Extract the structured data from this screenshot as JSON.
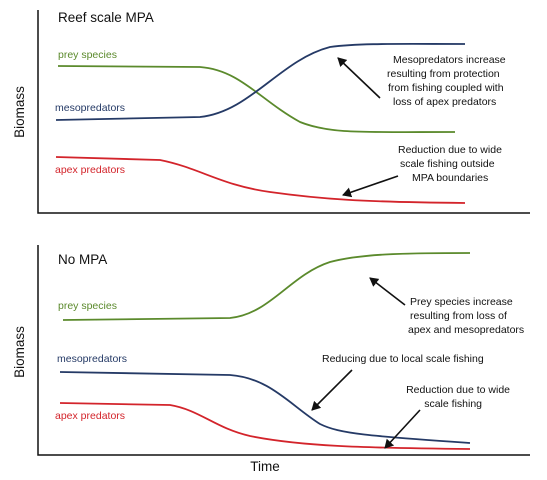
{
  "panels": [
    {
      "title": "Reef scale MPA",
      "y_label": "Biomass",
      "series_labels": [
        "prey species",
        "mesopredators",
        "apex predators"
      ],
      "annotations": [
        [
          "Mesopredators increase",
          "resulting from protection",
          "from fishing coupled with",
          "loss of apex predators"
        ],
        [
          "Reduction due to wide",
          "scale fishing outside",
          "MPA boundaries"
        ]
      ]
    },
    {
      "title": "No MPA",
      "y_label": "Biomass",
      "x_label": "Time",
      "series_labels": [
        "prey species",
        "mesopredators",
        "apex predators"
      ],
      "annotations": [
        [
          "Prey species increase",
          "resulting from loss of",
          "apex and mesopredators"
        ],
        [
          "Reducing due to local scale fishing"
        ],
        [
          "Reduction due to wide",
          "scale fishing"
        ]
      ]
    }
  ]
}
